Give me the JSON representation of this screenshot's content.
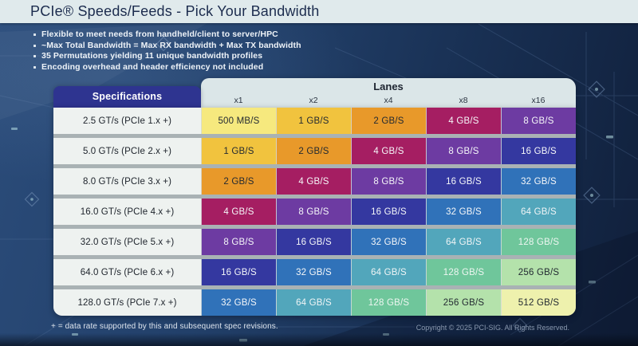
{
  "title": "PCIe® Speeds/Feeds - Pick Your Bandwidth",
  "bullets": [
    "Flexible to meet needs from handheld/client to server/HPC",
    "~Max Total Bandwidth = Max RX bandwidth + Max TX bandwidth",
    "35 Permutations yielding 11 unique bandwidth profiles",
    "Encoding overhead and header efficiency not included"
  ],
  "table": {
    "spec_header": "Specifications",
    "lanes_header": "Lanes",
    "lane_columns": [
      "x1",
      "x2",
      "x4",
      "x8",
      "x16"
    ],
    "rows": [
      {
        "spec": "2.5 GT/s (PCIe 1.x +)",
        "values": [
          "500 MB/S",
          "1 GB/S",
          "2 GB/S",
          "4 GB/S",
          "8 GB/S"
        ]
      },
      {
        "spec": "5.0 GT/s (PCIe 2.x +)",
        "values": [
          "1 GB/S",
          "2 GB/S",
          "4 GB/S",
          "8 GB/S",
          "16 GB/S"
        ]
      },
      {
        "spec": "8.0 GT/s (PCIe 3.x +)",
        "values": [
          "2 GB/S",
          "4 GB/S",
          "8 GB/S",
          "16 GB/S",
          "32 GB/S"
        ]
      },
      {
        "spec": "16.0 GT/s (PCIe 4.x +)",
        "values": [
          "4 GB/S",
          "8 GB/S",
          "16 GB/S",
          "32 GB/S",
          "64 GB/S"
        ]
      },
      {
        "spec": "32.0 GT/s (PCIe 5.x +)",
        "values": [
          "8 GB/S",
          "16 GB/S",
          "32 GB/S",
          "64 GB/S",
          "128 GB/S"
        ]
      },
      {
        "spec": "64.0 GT/s (PCIe 6.x +)",
        "values": [
          "16 GB/S",
          "32 GB/S",
          "64 GB/S",
          "128 GB/S",
          "256 GB/S"
        ]
      },
      {
        "spec": "128.0 GT/s (PCIe 7.x +)",
        "values": [
          "32 GB/S",
          "64 GB/S",
          "128 GB/S",
          "256 GB/S",
          "512 GB/S"
        ]
      }
    ]
  },
  "value_colors": {
    "500 MB/S": {
      "bg": "#f6e97e",
      "text": "#232a32"
    },
    "1 GB/S": {
      "bg": "#f1c33e",
      "text": "#232a32"
    },
    "2 GB/S": {
      "bg": "#e8992a",
      "text": "#232a32"
    },
    "4 GB/S": {
      "bg": "#a51e62",
      "text": "#f5f7f9"
    },
    "8 GB/S": {
      "bg": "#6d3ba2",
      "text": "#f5f7f9"
    },
    "16 GB/S": {
      "bg": "#3438a0",
      "text": "#f5f7f9"
    },
    "32 GB/S": {
      "bg": "#3072b9",
      "text": "#f5f7f9"
    },
    "64 GB/S": {
      "bg": "#52a6bb",
      "text": "#f0f5f6"
    },
    "128 GB/S": {
      "bg": "#6fc69b",
      "text": "#eef6f1"
    },
    "256 GB/S": {
      "bg": "#b4e2ab",
      "text": "#232a32"
    },
    "512 GB/S": {
      "bg": "#eef1ad",
      "text": "#232a32"
    }
  },
  "footnote": "+ = data rate supported by this and subsequent spec revisions.",
  "copyright": "Copyright © 2025 PCI-SIG. All Rights Reserved.",
  "theme": {
    "title_bar_bg": "#e0eaec",
    "title_text": "#1c2c4e",
    "background_navy": "#1f3a61",
    "lanes_header_bg": "#dbe6e8",
    "spec_header_bg": "#2e3490",
    "row_label_bg": "#eef2f0",
    "row_gap_gray": "#a9b2b4"
  }
}
